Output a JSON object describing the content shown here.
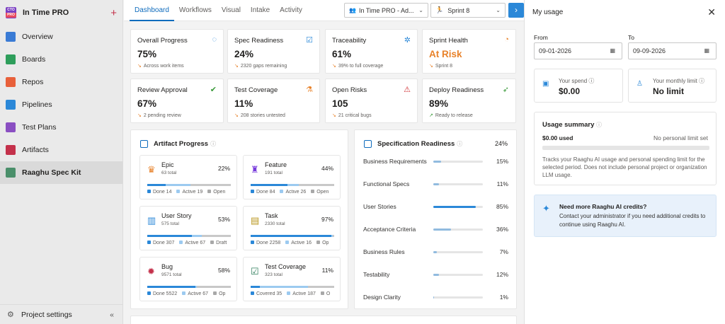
{
  "org": {
    "name": "In Time PRO",
    "logo_top": "CTO",
    "logo_bottom": "PRO"
  },
  "sidebar": {
    "items": [
      {
        "label": "Overview",
        "color": "#3a7bd5"
      },
      {
        "label": "Boards",
        "color": "#2e9e5b"
      },
      {
        "label": "Repos",
        "color": "#e8603a"
      },
      {
        "label": "Pipelines",
        "color": "#2b88d8"
      },
      {
        "label": "Test Plans",
        "color": "#8a4fc2"
      },
      {
        "label": "Artifacts",
        "color": "#c4314b"
      },
      {
        "label": "Raaghu Spec Kit",
        "color": "#4a8f6a"
      }
    ],
    "active_index": 6,
    "settings_label": "Project settings"
  },
  "topbar": {
    "tabs": [
      "Dashboard",
      "Workflows",
      "Visual",
      "Intake",
      "Activity"
    ],
    "active_tab": 0,
    "project_select": "In Time PRO - Ad...",
    "sprint_select": "Sprint 8"
  },
  "stats": [
    {
      "title": "Overall Progress",
      "value": "75%",
      "sub": "Across work items",
      "icon": "progress-ring-icon",
      "glyph": "◌",
      "color": "#2b88d8"
    },
    {
      "title": "Spec Readiness",
      "value": "24%",
      "sub": "2320 gaps remaining",
      "icon": "checklist-icon",
      "glyph": "☑",
      "color": "#2b88d8"
    },
    {
      "title": "Traceability",
      "value": "61%",
      "sub": "39% to full coverage",
      "icon": "network-icon",
      "glyph": "✲",
      "color": "#2b88d8"
    },
    {
      "title": "Sprint Health",
      "value": "At Risk",
      "sub": "Sprint 8",
      "icon": "gauge-icon",
      "glyph": "◔",
      "color": "#e8822a",
      "alert": true
    },
    {
      "title": "Review Approval",
      "value": "67%",
      "sub": "2 pending review",
      "icon": "check-circle-icon",
      "glyph": "✔",
      "color": "#3a9a3a"
    },
    {
      "title": "Test Coverage",
      "value": "11%",
      "sub": "208 stories untested",
      "icon": "flask-icon",
      "glyph": "⚗",
      "color": "#e8822a"
    },
    {
      "title": "Open Risks",
      "value": "105",
      "sub": "21 critical bugs",
      "icon": "warning-icon",
      "glyph": "⚠",
      "color": "#d13438"
    },
    {
      "title": "Deploy Readiness",
      "value": "89%",
      "sub": "Ready to release",
      "icon": "rocket-icon",
      "glyph": "➶",
      "color": "#3a9a3a",
      "up": true
    }
  ],
  "artifact_progress": {
    "title": "Artifact Progress",
    "items": [
      {
        "name": "Epic",
        "total": "63 total",
        "pct": "22%",
        "done_frac": 0.22,
        "active_frac": 0.3,
        "icon": "crown-icon",
        "glyph": "♛",
        "color": "#e8822a",
        "legend": [
          "Done 14",
          "Active 19",
          "Open"
        ]
      },
      {
        "name": "Feature",
        "total": "191 total",
        "pct": "44%",
        "done_frac": 0.44,
        "active_frac": 0.14,
        "icon": "trophy-icon",
        "glyph": "♜",
        "color": "#773adc",
        "legend": [
          "Done 84",
          "Active 26",
          "Open"
        ]
      },
      {
        "name": "User Story",
        "total": "575 total",
        "pct": "53%",
        "done_frac": 0.53,
        "active_frac": 0.12,
        "icon": "book-icon",
        "glyph": "▥",
        "color": "#2b88d8",
        "legend": [
          "Done 307",
          "Active 67",
          "Draft"
        ]
      },
      {
        "name": "Task",
        "total": "2330 total",
        "pct": "97%",
        "done_frac": 0.97,
        "active_frac": 0.01,
        "icon": "clipboard-icon",
        "glyph": "▤",
        "color": "#b8961e",
        "legend": [
          "Done 2258",
          "Active 16",
          "Op"
        ]
      },
      {
        "name": "Bug",
        "total": "9571 total",
        "pct": "58%",
        "done_frac": 0.58,
        "active_frac": 0.01,
        "icon": "bug-icon",
        "glyph": "✹",
        "color": "#c4314b",
        "legend": [
          "Done 5522",
          "Active 67",
          "Op"
        ]
      },
      {
        "name": "Test Coverage",
        "total": "323 total",
        "pct": "11%",
        "done_frac": 0.11,
        "active_frac": 0.58,
        "icon": "test-check-icon",
        "glyph": "☑",
        "color": "#2e7d5b",
        "legend": [
          "Covered 35",
          "Active 187",
          "O"
        ]
      }
    ]
  },
  "spec_readiness": {
    "title": "Specification Readiness",
    "overall": "24%",
    "rows": [
      {
        "name": "Business Requirements",
        "pct": "15%",
        "frac": 0.15
      },
      {
        "name": "Functional Specs",
        "pct": "11%",
        "frac": 0.11
      },
      {
        "name": "User Stories",
        "pct": "85%",
        "frac": 0.85
      },
      {
        "name": "Acceptance Criteria",
        "pct": "36%",
        "frac": 0.36
      },
      {
        "name": "Business Rules",
        "pct": "7%",
        "frac": 0.07
      },
      {
        "name": "Testability",
        "pct": "12%",
        "frac": 0.12
      },
      {
        "name": "Design Clarity",
        "pct": "1%",
        "frac": 0.01
      }
    ]
  },
  "usage": {
    "title": "My usage",
    "from_label": "From",
    "to_label": "To",
    "from_date": "09-01-2026",
    "to_date": "09-09-2026",
    "spend_label": "Your spend",
    "spend_value": "$0.00",
    "limit_label": "Your monthly limit",
    "limit_value": "No limit",
    "summary_title": "Usage summary",
    "used": "$0.00 used",
    "limit_text": "No personal limit set",
    "summary_desc": "Tracks your Raaghu AI usage and personal spending limit for the selected period. Does not include personal project or organization LLM usage.",
    "credits_title": "Need more Raaghu AI credits?",
    "credits_desc": "Contact your administrator if you need additional credits to continue using Raaghu AI."
  }
}
